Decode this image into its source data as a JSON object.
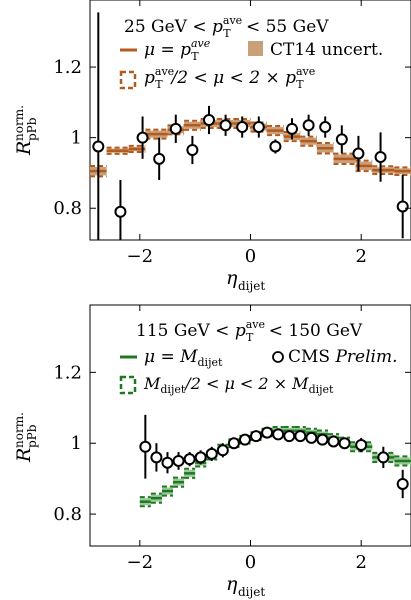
{
  "chart_data": [
    {
      "type": "scatter",
      "ylabel": "R",
      "ylabel_sup": "norm.",
      "ylabel_sub": "pPb",
      "xlabel": "η",
      "xlabel_sub": "dijet",
      "xlim": [
        -2.9,
        2.9
      ],
      "ylim": [
        0.71,
        1.39
      ],
      "x_ticks": [
        -2,
        0,
        2
      ],
      "y_ticks": [
        0.8,
        1,
        1.2
      ],
      "x_tick_labels": [
        "−2",
        "0",
        "2"
      ],
      "y_tick_labels": [
        "0.8",
        "1",
        "1.2"
      ],
      "legend": {
        "title": {
          "pre": "25 GeV < ",
          "p": "p",
          "sup": "ave",
          "sub": "T",
          "post": " < 55 GeV"
        },
        "line": "μ = p",
        "line_sup": "ave",
        "line_sub": "T",
        "box": "CT14 uncert.",
        "dashed": "p",
        "dashed_sup": "ave",
        "dashed_sub": "T",
        "dashed_rest": "/2 < μ < 2 × p",
        "dashed_rest_sup": "ave",
        "dashed_rest_sub": "T"
      },
      "colors": {
        "line": "#b35a1f",
        "band": "#c8a07a",
        "data": "#000000"
      },
      "bin_edges": [
        -2.9,
        -2.6,
        -2.2,
        -1.9,
        -1.5,
        -1.2,
        -0.9,
        -0.6,
        -0.3,
        0.0,
        0.3,
        0.6,
        0.9,
        1.2,
        1.5,
        1.9,
        2.2,
        2.6,
        2.9
      ],
      "theory": [
        0.905,
        0.963,
        0.968,
        1.01,
        1.022,
        1.035,
        1.04,
        1.04,
        1.04,
        1.03,
        1.02,
        1.003,
        0.99,
        0.97,
        0.94,
        0.92,
        0.908,
        0.905
      ],
      "theory_band": [
        0.012,
        0.006,
        0.006,
        0.01,
        0.01,
        0.01,
        0.01,
        0.01,
        0.01,
        0.01,
        0.01,
        0.01,
        0.01,
        0.012,
        0.012,
        0.012,
        0.008,
        0.008
      ],
      "points": {
        "x": [
          -2.75,
          -2.35,
          -1.95,
          -1.65,
          -1.35,
          -1.05,
          -0.75,
          -0.45,
          -0.15,
          0.15,
          0.45,
          0.75,
          1.05,
          1.35,
          1.65,
          1.95,
          2.35,
          2.75
        ],
        "y": [
          0.975,
          0.79,
          1.0,
          0.94,
          1.025,
          0.965,
          1.05,
          1.035,
          1.03,
          1.03,
          0.975,
          1.025,
          1.035,
          1.03,
          0.995,
          0.955,
          0.945,
          0.805
        ],
        "err": [
          0.38,
          0.09,
          0.06,
          0.06,
          0.04,
          0.04,
          0.04,
          0.03,
          0.03,
          0.03,
          0.02,
          0.03,
          0.03,
          0.03,
          0.04,
          0.05,
          0.07,
          0.09
        ]
      }
    },
    {
      "type": "scatter",
      "ylabel": "R",
      "ylabel_sup": "norm.",
      "ylabel_sub": "pPb",
      "xlabel": "η",
      "xlabel_sub": "dijet",
      "xlim": [
        -2.9,
        2.9
      ],
      "ylim": [
        0.71,
        1.39
      ],
      "x_ticks": [
        -2,
        0,
        2
      ],
      "y_ticks": [
        0.8,
        1,
        1.2
      ],
      "x_tick_labels": [
        "−2",
        "0",
        "2"
      ],
      "y_tick_labels": [
        "0.8",
        "1",
        "1.2"
      ],
      "legend": {
        "title": {
          "pre": "115 GeV < ",
          "p": "p",
          "sup": "ave",
          "sub": "T",
          "post": " < 150 GeV"
        },
        "line": "μ = M",
        "line_sub": "dijet",
        "marker": "CMS ",
        "marker_it": "Prelim.",
        "dashed": "M",
        "dashed_sub": "dijet",
        "dashed_rest": "/2 < μ < 2 × M",
        "dashed_rest_sub": "dijet"
      },
      "colors": {
        "line": "#1f7a1f",
        "band": "#9cc79c",
        "data": "#000000"
      },
      "bin_edges": [
        -2.0,
        -1.8,
        -1.6,
        -1.4,
        -1.2,
        -1.0,
        -0.8,
        -0.6,
        -0.4,
        -0.2,
        0.0,
        0.2,
        0.4,
        0.6,
        0.8,
        1.0,
        1.2,
        1.4,
        1.6,
        1.8,
        2.2,
        2.6,
        2.9
      ],
      "theory": [
        0.835,
        0.845,
        0.865,
        0.89,
        0.915,
        0.945,
        0.965,
        0.985,
        1.0,
        1.01,
        1.02,
        1.03,
        1.035,
        1.035,
        1.035,
        1.03,
        1.025,
        1.015,
        1.005,
        0.99,
        0.96,
        0.95
      ],
      "theory_band": [
        0.01,
        0.01,
        0.01,
        0.01,
        0.01,
        0.008,
        0.008,
        0.008,
        0.008,
        0.008,
        0.008,
        0.008,
        0.008,
        0.008,
        0.008,
        0.008,
        0.008,
        0.008,
        0.008,
        0.01,
        0.01,
        0.01
      ],
      "points": {
        "x": [
          -1.9,
          -1.7,
          -1.5,
          -1.3,
          -1.1,
          -0.9,
          -0.7,
          -0.5,
          -0.3,
          -0.1,
          0.1,
          0.3,
          0.5,
          0.7,
          0.9,
          1.1,
          1.3,
          1.5,
          1.7,
          2.0,
          2.4,
          2.75
        ],
        "y": [
          0.99,
          0.96,
          0.945,
          0.95,
          0.955,
          0.96,
          0.97,
          0.98,
          1.0,
          1.01,
          1.02,
          1.03,
          1.025,
          1.02,
          1.02,
          1.015,
          1.01,
          1.005,
          1.0,
          0.995,
          0.96,
          0.885
        ],
        "err": [
          0.09,
          0.04,
          0.03,
          0.025,
          0.02,
          0.02,
          0.02,
          0.02,
          0.015,
          0.015,
          0.015,
          0.015,
          0.015,
          0.015,
          0.015,
          0.015,
          0.015,
          0.015,
          0.015,
          0.02,
          0.03,
          0.04
        ]
      }
    }
  ]
}
